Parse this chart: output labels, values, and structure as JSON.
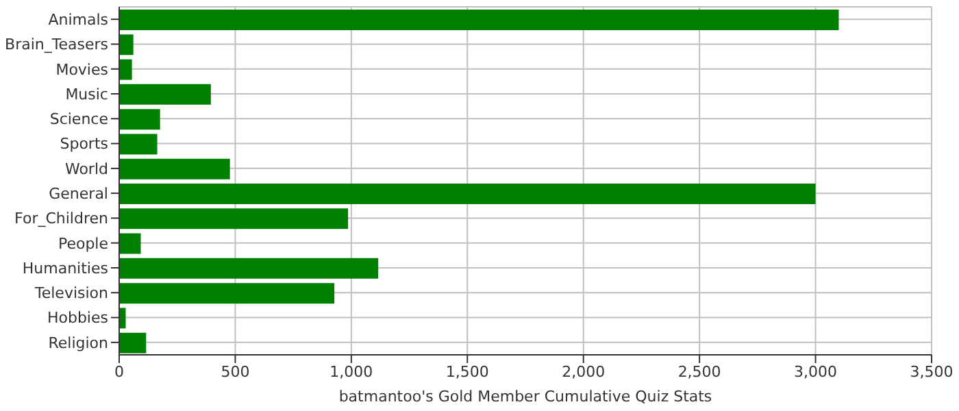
{
  "chart_data": {
    "type": "bar",
    "orientation": "horizontal",
    "xlabel": "batmantoo's Gold Member Cumulative Quiz Stats",
    "categories": [
      "Animals",
      "Brain_Teasers",
      "Movies",
      "Music",
      "Science",
      "Sports",
      "World",
      "General",
      "For_Children",
      "People",
      "Humanities",
      "Television",
      "Hobbies",
      "Religion"
    ],
    "values": [
      3100,
      61,
      55,
      395,
      176,
      164,
      477,
      3000,
      986,
      93,
      1116,
      927,
      28,
      116
    ],
    "color": "#008000",
    "xlim": [
      0,
      3500
    ],
    "xticks": [
      0,
      500,
      {
        "value": 1000,
        "label": "1,000"
      },
      {
        "value": 1500,
        "label": "1,500"
      },
      {
        "value": 2000,
        "label": "2,000"
      },
      {
        "value": 2500,
        "label": "2,500"
      },
      {
        "value": 3000,
        "label": "3,000"
      },
      {
        "value": 3500,
        "label": "3,500"
      }
    ],
    "grid": true
  }
}
